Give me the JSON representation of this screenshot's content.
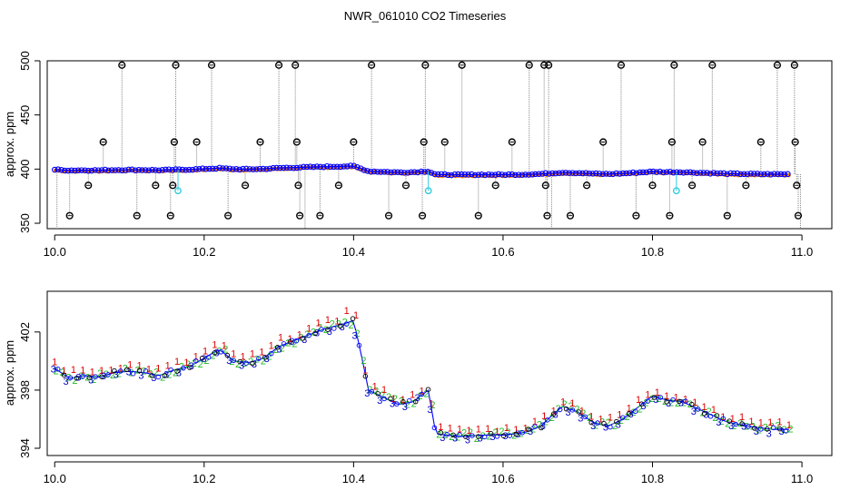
{
  "figure": {
    "title": "NWR_061010  CO2 Timeseries"
  },
  "chart_data": [
    {
      "type": "scatter",
      "ylabel": "approx. ppm",
      "xlabel": "",
      "xlim": [
        9.99,
        11.04
      ],
      "ylim": [
        345,
        500
      ],
      "xticks": [
        "10.0",
        "10.2",
        "10.4",
        "10.6",
        "10.8",
        "11.0"
      ],
      "yticks": [
        "350",
        "400",
        "450",
        "500"
      ],
      "grid": false,
      "series": [
        {
          "role": "main_trace",
          "points": [
            [
              10.0,
              399.5
            ],
            [
              10.02,
              398.8
            ],
            [
              10.04,
              399.0
            ],
            [
              10.06,
              398.9
            ],
            [
              10.08,
              399.2
            ],
            [
              10.1,
              399.3
            ],
            [
              10.12,
              399.2
            ],
            [
              10.14,
              399.0
            ],
            [
              10.16,
              399.4
            ],
            [
              10.18,
              399.6
            ],
            [
              10.2,
              400.2
            ],
            [
              10.22,
              400.8
            ],
            [
              10.24,
              400.0
            ],
            [
              10.26,
              399.9
            ],
            [
              10.28,
              400.2
            ],
            [
              10.3,
              401.0
            ],
            [
              10.33,
              401.6
            ],
            [
              10.36,
              402.2
            ],
            [
              10.39,
              402.6
            ],
            [
              10.4,
              402.8
            ],
            [
              10.41,
              400.5
            ],
            [
              10.42,
              398.0
            ],
            [
              10.44,
              397.5
            ],
            [
              10.46,
              397.0
            ],
            [
              10.48,
              397.2
            ],
            [
              10.5,
              398.0
            ],
            [
              10.51,
              395.0
            ],
            [
              10.54,
              394.8
            ],
            [
              10.57,
              394.9
            ],
            [
              10.6,
              394.9
            ],
            [
              10.63,
              395.1
            ],
            [
              10.65,
              395.5
            ],
            [
              10.66,
              396.0
            ],
            [
              10.68,
              396.9
            ],
            [
              10.7,
              396.5
            ],
            [
              10.72,
              395.8
            ],
            [
              10.74,
              395.5
            ],
            [
              10.76,
              396.0
            ],
            [
              10.78,
              396.8
            ],
            [
              10.8,
              397.6
            ],
            [
              10.82,
              397.3
            ],
            [
              10.84,
              397.2
            ],
            [
              10.87,
              396.5
            ],
            [
              10.9,
              395.8
            ],
            [
              10.93,
              395.5
            ],
            [
              10.96,
              395.3
            ],
            [
              10.98,
              395.3
            ]
          ]
        },
        {
          "role": "black_circle_spikes",
          "points": [
            [
              10.02,
              357
            ],
            [
              10.045,
              385
            ],
            [
              10.065,
              425
            ],
            [
              10.09,
              496
            ],
            [
              10.11,
              357
            ],
            [
              10.135,
              385
            ],
            [
              10.155,
              357
            ],
            [
              10.158,
              385
            ],
            [
              10.16,
              425
            ],
            [
              10.162,
              496
            ],
            [
              10.19,
              425
            ],
            [
              10.21,
              496
            ],
            [
              10.232,
              357
            ],
            [
              10.255,
              385
            ],
            [
              10.275,
              425
            ],
            [
              10.3,
              496
            ],
            [
              10.322,
              496
            ],
            [
              10.324,
              425
            ],
            [
              10.326,
              385
            ],
            [
              10.328,
              357
            ],
            [
              10.355,
              357
            ],
            [
              10.38,
              385
            ],
            [
              10.4,
              425
            ],
            [
              10.424,
              496
            ],
            [
              10.447,
              357
            ],
            [
              10.47,
              385
            ],
            [
              10.492,
              357
            ],
            [
              10.494,
              425
            ],
            [
              10.496,
              496
            ],
            [
              10.522,
              425
            ],
            [
              10.545,
              496
            ],
            [
              10.567,
              357
            ],
            [
              10.59,
              385
            ],
            [
              10.612,
              425
            ],
            [
              10.635,
              496
            ],
            [
              10.655,
              496
            ],
            [
              10.657,
              385
            ],
            [
              10.659,
              357
            ],
            [
              10.661,
              496
            ],
            [
              10.69,
              357
            ],
            [
              10.712,
              385
            ],
            [
              10.734,
              425
            ],
            [
              10.758,
              496
            ],
            [
              10.778,
              357
            ],
            [
              10.8,
              385
            ],
            [
              10.823,
              357
            ],
            [
              10.826,
              425
            ],
            [
              10.829,
              496
            ],
            [
              10.853,
              385
            ],
            [
              10.867,
              425
            ],
            [
              10.88,
              496
            ],
            [
              10.9,
              357
            ],
            [
              10.925,
              385
            ],
            [
              10.945,
              425
            ],
            [
              10.967,
              496
            ],
            [
              10.99,
              496
            ],
            [
              10.991,
              425
            ],
            [
              10.993,
              385
            ],
            [
              10.995,
              357
            ]
          ]
        },
        {
          "role": "cyan_points",
          "color": "#33ccdd",
          "points": [
            [
              10.165,
              380
            ],
            [
              10.5,
              380
            ],
            [
              10.832,
              380
            ]
          ]
        }
      ]
    },
    {
      "type": "scatter",
      "ylabel": "approx. ppm",
      "xlabel": "",
      "xlim": [
        9.99,
        11.04
      ],
      "ylim": [
        393.5,
        404.8
      ],
      "xticks": [
        "10.0",
        "10.2",
        "10.4",
        "10.6",
        "10.8",
        "11.0"
      ],
      "yticks": [
        "394",
        "398",
        "402"
      ],
      "grid": false,
      "markers": [
        "1",
        "2",
        "3"
      ],
      "colors": {
        "1": "#dd0000",
        "2": "#22bb22",
        "3": "#0000cc",
        "line": "#0000ff",
        "circle": "#000000"
      }
    }
  ]
}
